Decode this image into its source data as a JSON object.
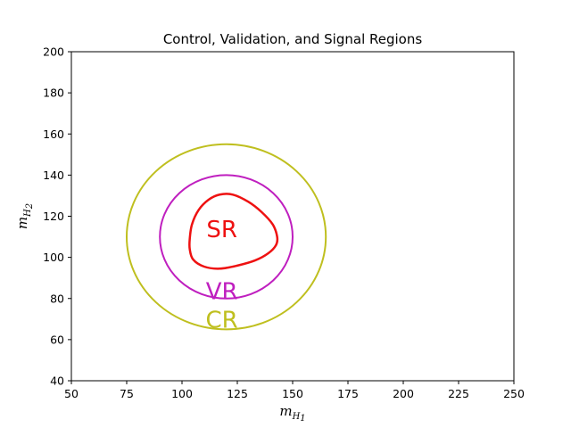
{
  "chart_data": {
    "type": "contour",
    "title": "Control, Validation, and Signal Regions",
    "xlabel": {
      "base": "m",
      "sub_base": "H",
      "sub_index": "1"
    },
    "ylabel": {
      "base": "m",
      "sub_base": "H",
      "sub_index": "2"
    },
    "xlim": [
      50,
      250
    ],
    "ylim": [
      40,
      200
    ],
    "xticks": [
      50,
      75,
      100,
      125,
      150,
      175,
      200,
      225,
      250
    ],
    "yticks": [
      40,
      60,
      80,
      100,
      120,
      140,
      160,
      180,
      200
    ],
    "grid": false,
    "regions": [
      {
        "label": "CR",
        "color": "#bfbf1f",
        "shape": "ellipse",
        "center": [
          120,
          110
        ],
        "radius_x": 45,
        "radius_y": 45,
        "label_pos": [
          118,
          69
        ]
      },
      {
        "label": "VR",
        "color": "#bf1fbf",
        "shape": "ellipse",
        "center": [
          120,
          110
        ],
        "radius_x": 30,
        "radius_y": 30,
        "label_pos": [
          118,
          83
        ]
      },
      {
        "label": "SR",
        "color": "#ee1111",
        "shape": "polygon",
        "points": [
          [
            103.5,
            109
          ],
          [
            104.5,
            116
          ],
          [
            107.5,
            123
          ],
          [
            112,
            128
          ],
          [
            117,
            130.5
          ],
          [
            123,
            130.5
          ],
          [
            130,
            127
          ],
          [
            136,
            122
          ],
          [
            141,
            116
          ],
          [
            143,
            110
          ],
          [
            142.5,
            106
          ],
          [
            139,
            102
          ],
          [
            133,
            98.5
          ],
          [
            125,
            96
          ],
          [
            117,
            94.5
          ],
          [
            110,
            95.5
          ],
          [
            105,
            99
          ],
          [
            103.5,
            104
          ]
        ],
        "label_pos": [
          118,
          113
        ]
      }
    ]
  }
}
